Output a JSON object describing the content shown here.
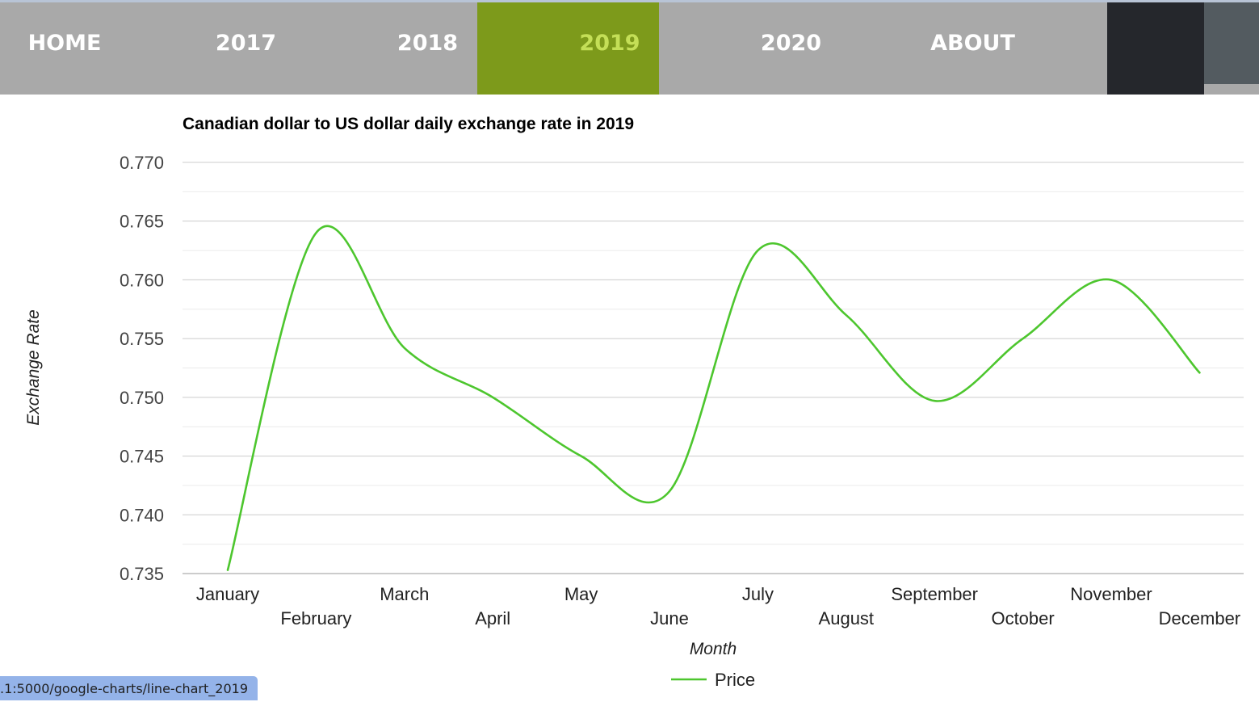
{
  "nav": {
    "items": [
      {
        "label": "HOME",
        "active": false
      },
      {
        "label": "2017",
        "active": false
      },
      {
        "label": "2018",
        "active": false
      },
      {
        "label": "2019",
        "active": true
      },
      {
        "label": "2020",
        "active": false
      },
      {
        "label": "ABOUT",
        "active": false
      }
    ],
    "active_color": "#7d9a1b",
    "active_text_color": "#c4df57",
    "bar_color": "#a9a9a9"
  },
  "chart_data": {
    "type": "line",
    "title": "Canadian dollar to US dollar daily exchange rate in 2019",
    "xlabel": "Month",
    "ylabel": "Exchange Rate",
    "categories": [
      "January",
      "February",
      "March",
      "April",
      "May",
      "June",
      "July",
      "August",
      "September",
      "October",
      "November",
      "December"
    ],
    "series": [
      {
        "name": "Price",
        "color": "#4dc62e",
        "values": [
          0.7353,
          0.764,
          0.7542,
          0.75,
          0.745,
          0.742,
          0.7625,
          0.757,
          0.7497,
          0.755,
          0.76,
          0.7521
        ]
      }
    ],
    "ylim": [
      0.735,
      0.77
    ],
    "yticks": [
      "0.735",
      "0.740",
      "0.745",
      "0.750",
      "0.755",
      "0.760",
      "0.765",
      "0.770"
    ],
    "grid": true,
    "legend_position": "bottom",
    "smooth": true
  },
  "status_bar": {
    "url": ".1:5000/google-charts/line-chart_2019"
  }
}
